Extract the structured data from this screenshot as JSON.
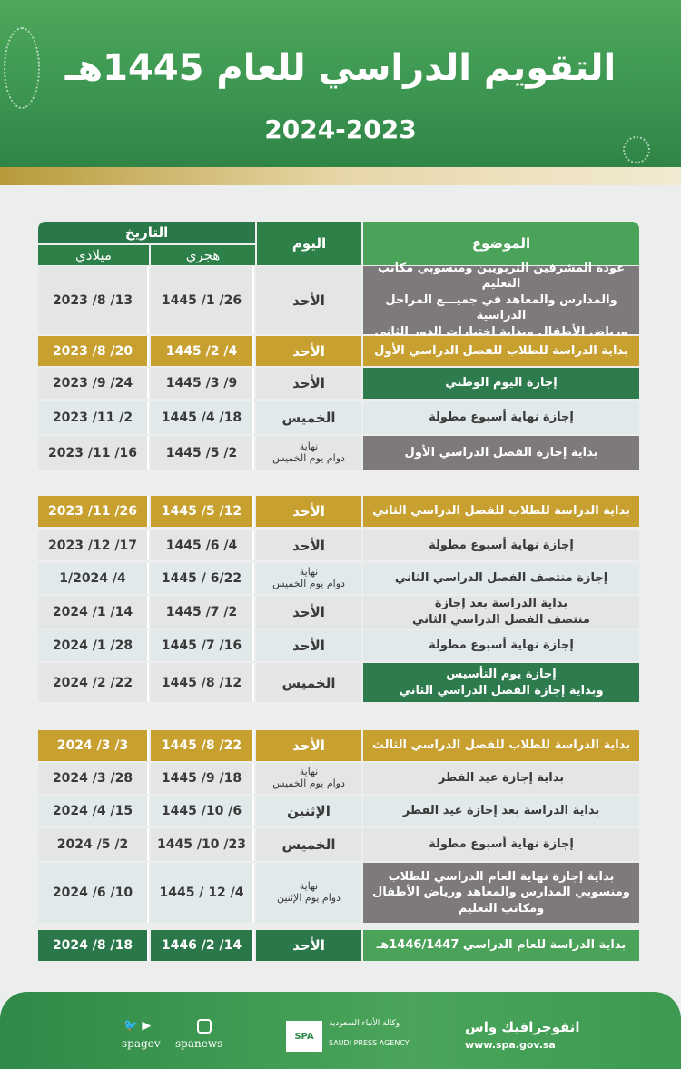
{
  "header": {
    "title": "التقويم الدراسي للعام 1445هـ",
    "subtitle": "2024-2023"
  },
  "colors": {
    "green": "#3a9450",
    "gold": "#c8a030",
    "gray": "#7e797c",
    "dark_green": "#2a7849"
  },
  "table": {
    "headers": {
      "topic": "الموضوع",
      "day": "اليوم",
      "date": "التاريخ",
      "hijri": "هجري",
      "gregorian": "ميلادي"
    },
    "rows": [
      {
        "highlight": "gray",
        "topic": "عودة المشرفين التربويين ومنسوبي مكاتب التعليم\nوالمدارس والمعاهد في جميـــع المراحل الدراسية\nورياض الأطفال وبداية اختبارات الدور الثاني",
        "day": "الأحد",
        "hijri": "26/ 1/ 1445",
        "gregorian": "13/ 8/ 2023"
      },
      {
        "highlight": "gold",
        "topic": "بداية الدراسة للطلاب للفصل الدراسي الأول",
        "day": "الأحد",
        "hijri": "4/ 2/ 1445",
        "gregorian": "20/ 8/ 2023"
      },
      {
        "highlight": "green",
        "topic": "إجازة اليوم الوطني",
        "day": "الأحد",
        "hijri": "9/ 3/ 1445",
        "gregorian": "24/ 9/ 2023"
      },
      {
        "highlight": "none",
        "topic": "إجازة نهاية أسبوع مطولة",
        "day": "الخميس",
        "hijri": "18/ 4/ 1445",
        "gregorian": "2/ 11/ 2023"
      },
      {
        "highlight": "gray",
        "topic": "بداية إجازة الفصل الدراسي الأول",
        "day": "نهاية\nدوام يوم الخميس",
        "hijri": "2/ 5/ 1445",
        "gregorian": "16/ 11/ 2023"
      },
      {
        "highlight": "gold",
        "topic": "بداية الدراسة للطلاب للفصل الدراسي الثاني",
        "day": "الأحد",
        "hijri": "12/ 5/ 1445",
        "gregorian": "26/ 11/ 2023"
      },
      {
        "highlight": "none",
        "topic": "إجازة نهاية أسبوع مطولة",
        "day": "الأحد",
        "hijri": "4/ 6/ 1445",
        "gregorian": "17/ 12/ 2023"
      },
      {
        "highlight": "none",
        "topic": "إجازة منتصف الفصل الدراسي الثاني",
        "day": "نهاية\nدوام يوم الخميس",
        "hijri": "6/22 / 1445",
        "gregorian": "4/ 1/2024"
      },
      {
        "highlight": "none",
        "topic": "بداية الدراسة بعد إجازة\nمنتصف الفصل الدراسي الثاني",
        "day": "الأحد",
        "hijri": "2/ 7/ 1445",
        "gregorian": "14/ 1/ 2024"
      },
      {
        "highlight": "none",
        "topic": "إجازة نهاية أسبوع مطولة",
        "day": "الأحد",
        "hijri": "16/ 7/ 1445",
        "gregorian": "28/ 1/ 2024"
      },
      {
        "highlight": "green",
        "topic": "إجازة يوم التأسيس\nوبداية إجازة الفصل الدراسي الثاني",
        "day": "الخميس",
        "hijri": "12/ 8/ 1445",
        "gregorian": "22/ 2/ 2024"
      },
      {
        "highlight": "gold",
        "topic": "بداية الدراسة للطلاب للفصل الدراسي الثالث",
        "day": "الأحد",
        "hijri": "22/ 8/ 1445",
        "gregorian": "3/ 3/ 2024"
      },
      {
        "highlight": "none",
        "topic": "بداية إجازة عيد الفطر",
        "day": "نهاية\nدوام يوم الخميس",
        "hijri": "18/ 9/ 1445",
        "gregorian": "28/ 3/ 2024"
      },
      {
        "highlight": "none",
        "topic": "بداية الدراسة بعد إجازة عيد الفطر",
        "day": "الإثنين",
        "hijri": "6/ 10/ 1445",
        "gregorian": "15/ 4/ 2024"
      },
      {
        "highlight": "none",
        "topic": "إجازة نهاية أسبوع مطولة",
        "day": "الخميس",
        "hijri": "23/ 10/ 1445",
        "gregorian": "2/ 5/ 2024"
      },
      {
        "highlight": "gray",
        "topic": "بداية إجازة نهاية العام الدراسي للطلاب\nومنسوبي المدارس والمعاهد ورياض الأطفال\nومكاتب التعليم",
        "day": "نهاية\nدوام يوم الإثنين",
        "hijri": "4/ 12 / 1445",
        "gregorian": "10/ 6/ 2024"
      },
      {
        "highlight": "final",
        "topic": "بداية الدراسة للعام الدراسي 1446/1447هـ",
        "day": "الأحد",
        "hijri": "14/ 2/ 1446",
        "gregorian": "18/ 8/ 2024"
      }
    ]
  },
  "footer": {
    "brand_ar": "انفوجرافيك واس",
    "website": "www.spa.gov.sa",
    "agency_ar": "وكالة الأنباء السعودية",
    "agency_en": "SAUDI PRESS AGENCY",
    "logo": "SPA واس",
    "social_1": "spagov",
    "social_2": "spanews"
  }
}
